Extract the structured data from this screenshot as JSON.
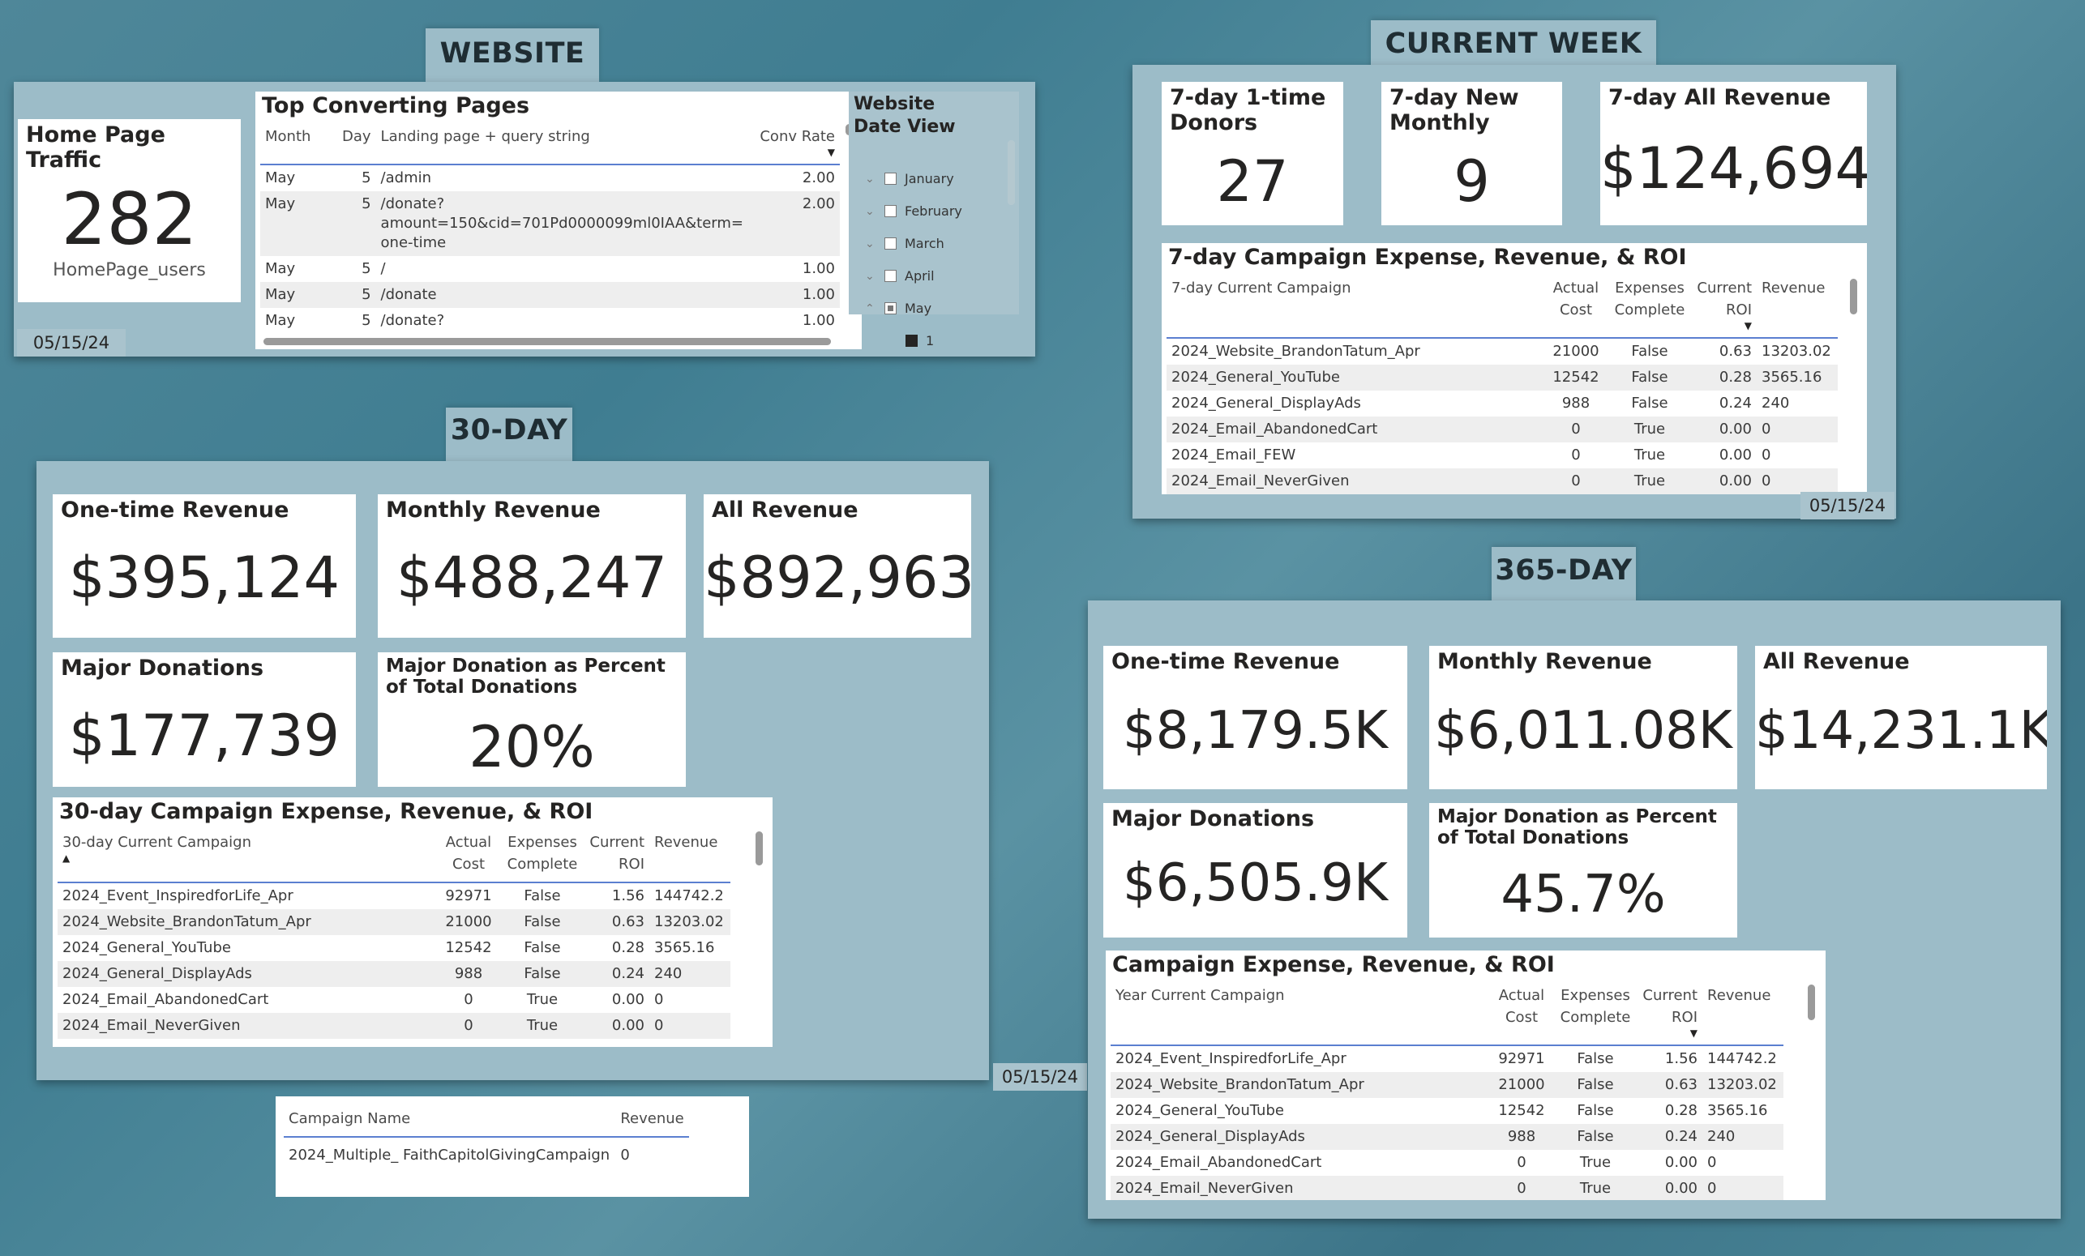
{
  "website": {
    "tab": "WEBSITE",
    "home_traffic": {
      "title": "Home Page Traffic",
      "value": "282",
      "label": "HomePage_users"
    },
    "top_pages": {
      "title": "Top Converting Pages",
      "columns": [
        "Month",
        "Day",
        "Landing page + query string",
        "Conv Rate"
      ],
      "rows": [
        [
          "May",
          "5",
          "/admin",
          "2.00"
        ],
        [
          "May",
          "5",
          "/donate?\namount=150&cid=701Pd0000099ml0IAA&term=\none-time",
          "2.00"
        ],
        [
          "May",
          "5",
          "/",
          "1.00"
        ],
        [
          "May",
          "5",
          "/donate",
          "1.00"
        ],
        [
          "May",
          "5",
          "/donate?",
          "1.00"
        ]
      ]
    },
    "slicer": {
      "title": "Website Date View",
      "items": [
        "January",
        "February",
        "March",
        "April",
        "May"
      ],
      "sub_item": "1"
    },
    "date": "05/15/24"
  },
  "current_week": {
    "tab": "CURRENT WEEK",
    "one_time": {
      "title": "7-day 1-time Donors",
      "value": "27"
    },
    "new_monthly": {
      "title": "7-day New Monthly",
      "value": "9"
    },
    "all_revenue": {
      "title": "7-day All Revenue",
      "value": "$124,694"
    },
    "table": {
      "title": "7-day Campaign Expense, Revenue, & ROI",
      "columns": [
        "7-day Current Campaign",
        "Actual Cost",
        "Expenses Complete",
        "Current ROI",
        "Revenue"
      ],
      "rows": [
        [
          "2024_Website_BrandonTatum_Apr",
          "21000",
          "False",
          "0.63",
          "13203.02"
        ],
        [
          "2024_General_YouTube",
          "12542",
          "False",
          "0.28",
          "3565.16"
        ],
        [
          "2024_General_DisplayAds",
          "988",
          "False",
          "0.24",
          "240"
        ],
        [
          "2024_Email_AbandonedCart",
          "0",
          "True",
          "0.00",
          "0"
        ],
        [
          "2024_Email_FEW",
          "0",
          "True",
          "0.00",
          "0"
        ],
        [
          "2024_Email_NeverGiven",
          "0",
          "True",
          "0.00",
          "0"
        ]
      ]
    },
    "date": "05/15/24"
  },
  "thirty_day": {
    "tab": "30-DAY",
    "one_time": {
      "title": "One-time Revenue",
      "value": "$395,124"
    },
    "monthly": {
      "title": "Monthly Revenue",
      "value": "$488,247"
    },
    "all": {
      "title": "All Revenue",
      "value": "$892,963"
    },
    "major": {
      "title": "Major Donations",
      "value": "$177,739"
    },
    "major_pct": {
      "title": "Major Donation as Percent of Total Donations",
      "value": "20%"
    },
    "table": {
      "title": "30-day Campaign Expense, Revenue, & ROI",
      "columns": [
        "30-day Current Campaign",
        "Actual Cost",
        "Expenses Complete",
        "Current ROI",
        "Revenue"
      ],
      "rows": [
        [
          "2024_Event_InspiredforLife_Apr",
          "92971",
          "False",
          "1.56",
          "144742.2"
        ],
        [
          "2024_Website_BrandonTatum_Apr",
          "21000",
          "False",
          "0.63",
          "13203.02"
        ],
        [
          "2024_General_YouTube",
          "12542",
          "False",
          "0.28",
          "3565.16"
        ],
        [
          "2024_General_DisplayAds",
          "988",
          "False",
          "0.24",
          "240"
        ],
        [
          "2024_Email_AbandonedCart",
          "0",
          "True",
          "0.00",
          "0"
        ],
        [
          "2024_Email_NeverGiven",
          "0",
          "True",
          "0.00",
          "0"
        ]
      ]
    },
    "date": "05/15/24",
    "campaign_table": {
      "columns": [
        "Campaign Name",
        "Revenue"
      ],
      "rows": [
        [
          "2024_Multiple_ FaithCapitolGivingCampaign",
          "0"
        ]
      ]
    }
  },
  "year": {
    "tab": "365-DAY",
    "one_time": {
      "title": "One-time Revenue",
      "value": "$8,179.5K"
    },
    "monthly": {
      "title": "Monthly Revenue",
      "value": "$6,011.08K"
    },
    "all": {
      "title": "All Revenue",
      "value": "$14,231.1K"
    },
    "major": {
      "title": "Major Donations",
      "value": "$6,505.9K"
    },
    "major_pct": {
      "title": "Major Donation as Percent of Total Donations",
      "value": "45.7%"
    },
    "table": {
      "title": "Campaign Expense, Revenue, & ROI",
      "columns": [
        "Year Current Campaign",
        "Actual Cost",
        "Expenses Complete",
        "Current ROI",
        "Revenue"
      ],
      "rows": [
        [
          "2024_Event_InspiredforLife_Apr",
          "92971",
          "False",
          "1.56",
          "144742.2"
        ],
        [
          "2024_Website_BrandonTatum_Apr",
          "21000",
          "False",
          "0.63",
          "13203.02"
        ],
        [
          "2024_General_YouTube",
          "12542",
          "False",
          "0.28",
          "3565.16"
        ],
        [
          "2024_General_DisplayAds",
          "988",
          "False",
          "0.24",
          "240"
        ],
        [
          "2024_Email_AbandonedCart",
          "0",
          "True",
          "0.00",
          "0"
        ],
        [
          "2024_Email_NeverGiven",
          "0",
          "True",
          "0.00",
          "0"
        ]
      ]
    }
  }
}
